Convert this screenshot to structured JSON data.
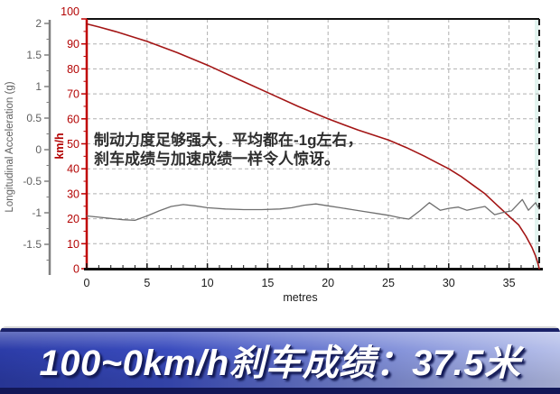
{
  "page": {
    "background": "#ffffff"
  },
  "annotation": {
    "line1": "制动力度足够强大，平均都在-1g左右，",
    "line2": "刹车成绩与加速成绩一样令人惊讶。"
  },
  "banner": {
    "text": "100~0km/h刹车成绩：37.5米",
    "text_color": "#ffffff",
    "bg_left": "#2c3ca8",
    "bg_right": "#b7c0ea",
    "border_dark": "#1a2168",
    "shadow_color": "#141b57"
  },
  "chart_data": {
    "type": "line",
    "title": "",
    "xlabel": "metres",
    "xlim": [
      0,
      37.7
    ],
    "x_major_ticks": [
      0,
      5,
      10,
      15,
      20,
      25,
      30,
      35
    ],
    "x_minor_step": 1,
    "grid": true,
    "grid_color": "#b0b0b0",
    "stop_line_x": 37.5,
    "stop_line_color": "#1a1a1a",
    "highlight_strip_color": "#ddf2ec",
    "speed_axis": {
      "label": "km/h",
      "color": "#c00000",
      "lim": [
        0,
        100
      ],
      "major_ticks": [
        0,
        10,
        20,
        30,
        40,
        50,
        60,
        70,
        80,
        90,
        100
      ],
      "minor_step": 5
    },
    "accel_axis": {
      "label": "Longitudinal Acceleration (g)",
      "color": "#808080",
      "lim": [
        -2,
        2
      ],
      "major_ticks": [
        2,
        1.5,
        1,
        0.5,
        0,
        -0.5,
        -1,
        -1.5
      ],
      "minor_step": 0.25
    },
    "series": [
      {
        "name": "speed",
        "unit": "km/h",
        "axis": "kmh",
        "color": "#a31515",
        "x": [
          0,
          1,
          2.5,
          5,
          7.5,
          10,
          12.5,
          15,
          17.5,
          20,
          22.5,
          25,
          26.5,
          28,
          29,
          30,
          31,
          32,
          33,
          34,
          35,
          35.8,
          36.4,
          36.9,
          37.2,
          37.4,
          37.5
        ],
        "y": [
          98,
          96.8,
          94.8,
          91,
          86.5,
          81.5,
          76,
          70.5,
          65,
          60,
          55.5,
          51.5,
          48.5,
          45,
          42.5,
          40,
          37,
          33.5,
          30,
          25.5,
          21,
          17.5,
          13,
          8.5,
          5,
          2,
          0
        ]
      },
      {
        "name": "longitudinal-acceleration",
        "unit": "g",
        "axis": "g",
        "color": "#6f6f6f",
        "x": [
          0,
          1,
          2,
          3,
          4,
          5,
          6,
          7,
          8,
          9,
          10,
          11.5,
          13,
          14.5,
          16,
          17,
          18,
          19,
          20,
          21,
          22,
          23,
          24,
          25,
          26,
          26.7,
          27.6,
          28.4,
          29.3,
          30,
          30.8,
          31.5,
          32.2,
          33,
          33.8,
          34.4,
          35.2,
          36.1,
          36.6,
          37.2,
          37.5
        ],
        "y": [
          -1.05,
          -1.07,
          -1.09,
          -1.11,
          -1.12,
          -1.05,
          -0.97,
          -0.9,
          -0.87,
          -0.89,
          -0.92,
          -0.94,
          -0.95,
          -0.95,
          -0.94,
          -0.92,
          -0.88,
          -0.86,
          -0.89,
          -0.92,
          -0.95,
          -0.98,
          -1.01,
          -1.04,
          -1.08,
          -1.1,
          -0.97,
          -0.84,
          -0.96,
          -0.93,
          -0.91,
          -0.96,
          -0.93,
          -0.9,
          -1.03,
          -1.0,
          -0.97,
          -0.79,
          -0.96,
          -0.84,
          -0.94
        ]
      }
    ],
    "annotation_text": "制动力度足够强大，平均都在-1g左右，刹车成绩与加速成绩一样令人惊讶。",
    "result_caption": "100~0km/h刹车成绩：37.5米"
  }
}
